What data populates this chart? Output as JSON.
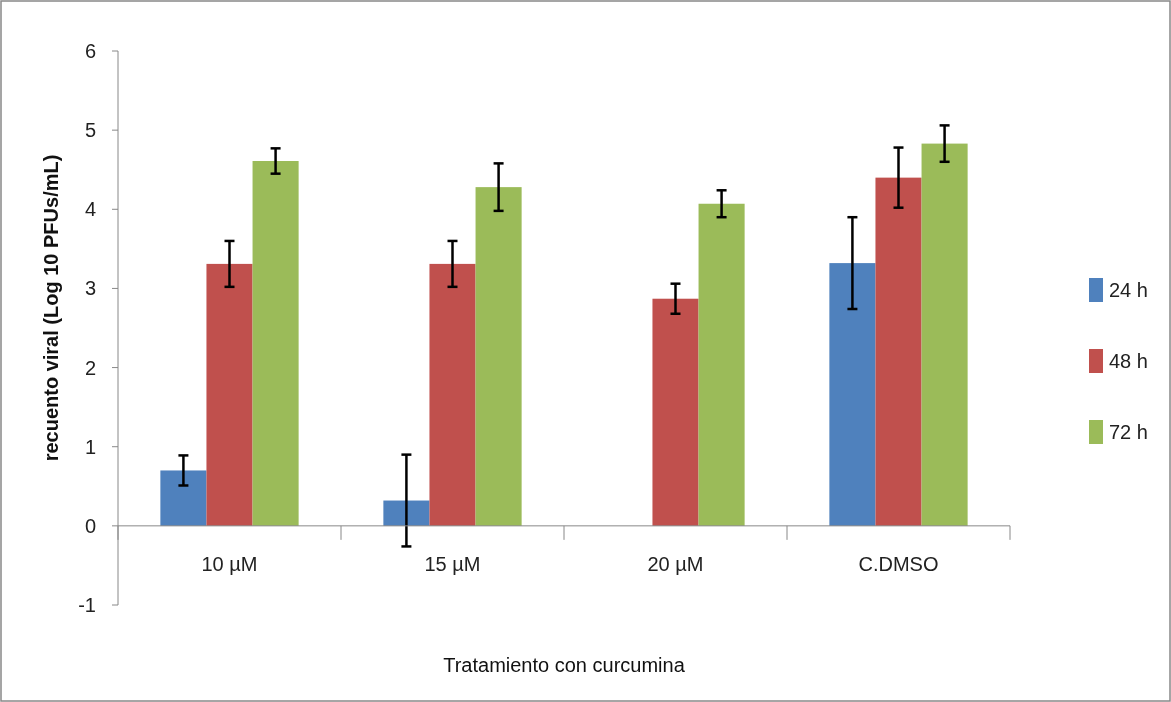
{
  "chart_data": {
    "type": "bar",
    "xlabel": "Tratamiento con curcumina",
    "ylabel": "recuento viral (Log 10 PFUs/mL)",
    "categories": [
      "10 µM",
      "15 µM",
      "20 µM",
      "C.DMSO"
    ],
    "series": [
      {
        "name": "24 h",
        "color": "#4f81bd",
        "values": [
          0.7,
          0.32,
          null,
          3.32
        ],
        "errors": [
          0.19,
          0.58,
          null,
          0.58
        ]
      },
      {
        "name": "48 h",
        "color": "#c0504d",
        "values": [
          3.31,
          3.31,
          2.87,
          4.4
        ],
        "errors": [
          0.29,
          0.29,
          0.19,
          0.38
        ]
      },
      {
        "name": "72 h",
        "color": "#9bbb59",
        "values": [
          4.61,
          4.28,
          4.07,
          4.83
        ],
        "errors": [
          0.16,
          0.3,
          0.17,
          0.23
        ]
      }
    ],
    "ylim": [
      -1,
      6
    ],
    "yticks": [
      -1,
      0,
      1,
      2,
      3,
      4,
      5,
      6
    ],
    "grid": false,
    "legend": "right"
  }
}
